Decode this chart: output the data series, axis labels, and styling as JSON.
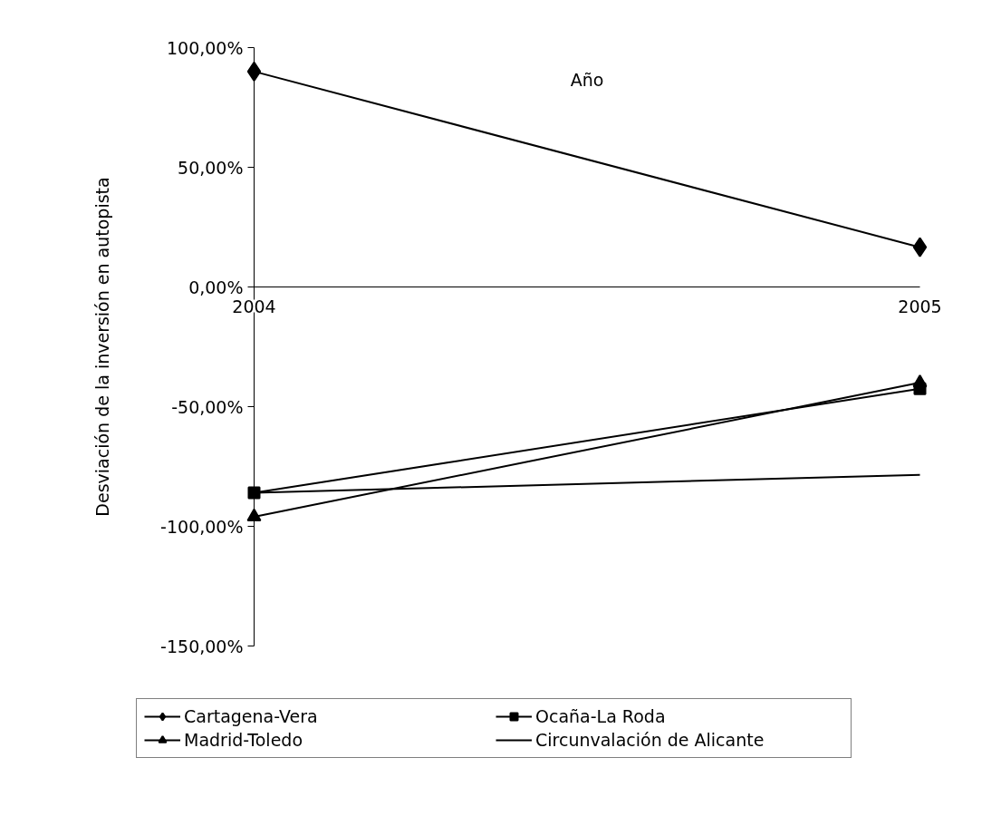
{
  "chart_data": {
    "type": "line",
    "xlabel": "Año",
    "ylabel": "Desviación de la inversión en autopista",
    "categories": [
      "2004",
      "2005"
    ],
    "series": [
      {
        "name": "Cartagena-Vera",
        "color": "#000000",
        "marker": "diamond",
        "values": [
          90,
          16.6
        ]
      },
      {
        "name": "Ocaña-La Roda",
        "color": "#000000",
        "marker": "square",
        "values": [
          -86,
          -42.5
        ]
      },
      {
        "name": "Madrid-Toledo",
        "color": "#000000",
        "marker": "triangle",
        "values": [
          -96,
          -40
        ]
      },
      {
        "name": "Circunvalación de Alicante",
        "color": "#000000",
        "marker": "none",
        "values": [
          -86,
          -78.5
        ]
      }
    ],
    "ylim": [
      -150,
      100
    ],
    "yticks": [
      {
        "value": -150,
        "label": "-150,00%"
      },
      {
        "value": -100,
        "label": "-100,00%"
      },
      {
        "value": -50,
        "label": "-50,00%"
      },
      {
        "value": 0,
        "label": "0,00%"
      },
      {
        "value": 50,
        "label": "50,00%"
      },
      {
        "value": 100,
        "label": "100,00%"
      }
    ],
    "grid": false,
    "legend": "bottom",
    "line_style": "solid"
  }
}
